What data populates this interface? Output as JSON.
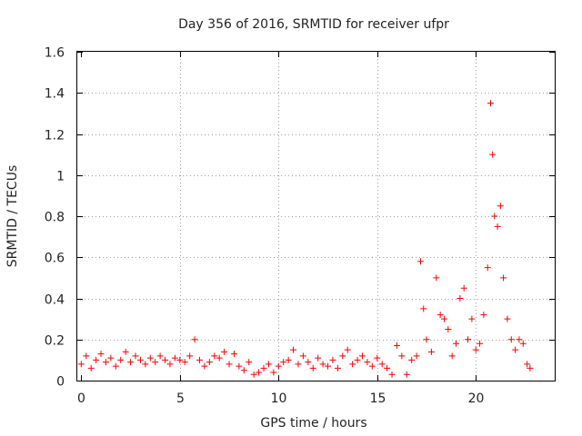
{
  "chart_data": {
    "type": "scatter",
    "title": "Day 356 of 2016, SRMTID for receiver ufpr",
    "xlabel": "GPS time / hours",
    "ylabel": "SRMTID / TECUs",
    "xlim": [
      -0.2,
      24
    ],
    "ylim": [
      0,
      1.6
    ],
    "xticks": [
      0,
      5,
      10,
      15,
      20
    ],
    "xtick_labels": [
      "0",
      "5",
      "10",
      "15",
      "20"
    ],
    "yticks": [
      0,
      0.2,
      0.4,
      0.6,
      0.8,
      1.0,
      1.2,
      1.4,
      1.6
    ],
    "ytick_labels": [
      "0",
      "0.2",
      "0.4",
      "0.6",
      "0.8",
      "1",
      "1.2",
      "1.4",
      "1.6"
    ],
    "grid": true,
    "marker": "+",
    "series": [
      {
        "name": "SRMTID",
        "color": "#ff0000",
        "x": [
          0.0,
          0.25,
          0.5,
          0.75,
          1.0,
          1.25,
          1.5,
          1.75,
          2.0,
          2.25,
          2.5,
          2.75,
          3.0,
          3.25,
          3.5,
          3.75,
          4.0,
          4.25,
          4.5,
          4.75,
          5.0,
          5.25,
          5.5,
          5.75,
          6.0,
          6.25,
          6.5,
          6.75,
          7.0,
          7.25,
          7.5,
          7.75,
          8.0,
          8.25,
          8.5,
          8.75,
          9.0,
          9.25,
          9.5,
          9.75,
          10.0,
          10.25,
          10.5,
          10.75,
          11.0,
          11.25,
          11.5,
          11.75,
          12.0,
          12.25,
          12.5,
          12.75,
          13.0,
          13.25,
          13.5,
          13.75,
          14.0,
          14.25,
          14.5,
          14.75,
          15.0,
          15.25,
          15.5,
          15.75,
          16.0,
          16.25,
          16.5,
          16.75,
          17.0,
          17.2,
          17.35,
          17.5,
          17.75,
          18.0,
          18.2,
          18.4,
          18.6,
          18.8,
          19.0,
          19.2,
          19.4,
          19.6,
          19.8,
          20.0,
          20.2,
          20.4,
          20.6,
          20.75,
          20.85,
          20.95,
          21.1,
          21.25,
          21.4,
          21.6,
          21.8,
          22.0,
          22.2,
          22.4,
          22.6,
          22.75
        ],
        "values": [
          0.08,
          0.12,
          0.06,
          0.1,
          0.13,
          0.09,
          0.11,
          0.07,
          0.1,
          0.14,
          0.09,
          0.12,
          0.1,
          0.08,
          0.11,
          0.09,
          0.12,
          0.1,
          0.08,
          0.11,
          0.1,
          0.09,
          0.12,
          0.2,
          0.1,
          0.07,
          0.09,
          0.12,
          0.11,
          0.14,
          0.08,
          0.13,
          0.07,
          0.05,
          0.09,
          0.03,
          0.04,
          0.06,
          0.08,
          0.04,
          0.07,
          0.09,
          0.1,
          0.15,
          0.08,
          0.12,
          0.09,
          0.06,
          0.11,
          0.08,
          0.07,
          0.1,
          0.06,
          0.12,
          0.15,
          0.08,
          0.1,
          0.12,
          0.09,
          0.07,
          0.11,
          0.08,
          0.06,
          0.03,
          0.17,
          0.12,
          0.03,
          0.1,
          0.12,
          0.58,
          0.35,
          0.2,
          0.14,
          0.5,
          0.32,
          0.3,
          0.25,
          0.12,
          0.18,
          0.4,
          0.45,
          0.2,
          0.3,
          0.15,
          0.18,
          0.32,
          0.55,
          1.35,
          1.1,
          0.8,
          0.75,
          0.85,
          0.5,
          0.3,
          0.2,
          0.15,
          0.2,
          0.18,
          0.08,
          0.06
        ]
      }
    ]
  }
}
